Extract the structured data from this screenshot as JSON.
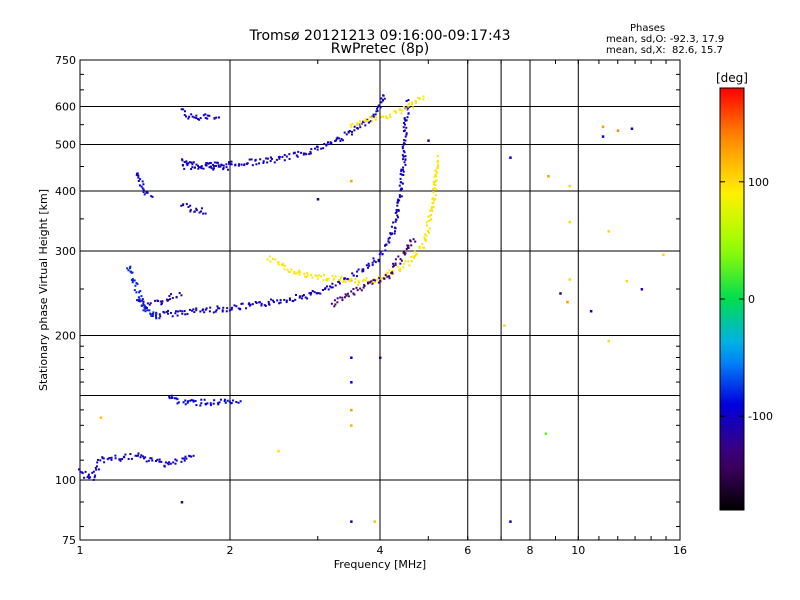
{
  "chart_data": {
    "type": "scatter",
    "title": "Tromsø 20121213 09:16:00-09:17:43",
    "subtitle": "RwPretec (8p)",
    "xlabel": "Frequency [MHz]",
    "ylabel": "Stationary phase Virtual Height [km]",
    "xscale": "log",
    "yscale": "log",
    "xlim": [
      1,
      16
    ],
    "ylim": [
      75,
      750
    ],
    "xticks": [
      1,
      2,
      4,
      6,
      8,
      10,
      16
    ],
    "xtick_labels": [
      "1",
      "2",
      "4",
      "6",
      "8",
      "10",
      "16"
    ],
    "xgrid": [
      1,
      2,
      4,
      6,
      7,
      8,
      10,
      16
    ],
    "yticks": [
      75,
      100,
      200,
      300,
      400,
      500,
      600,
      750
    ],
    "ytick_labels": [
      "75",
      "100",
      "200",
      "300",
      "400",
      "500",
      "600",
      "750"
    ],
    "ygrid": [
      100,
      150,
      200,
      300,
      400,
      500,
      600
    ],
    "grid": true,
    "phase_stats": {
      "heading": "Phases",
      "line_o": "mean, sd,O: -92.3, 17.9",
      "line_x": "mean, sd,X:  82.6, 15.7"
    },
    "colorbar": {
      "label": "[deg]",
      "min": -180,
      "max": 180,
      "ticks": [
        100,
        0,
        -100
      ],
      "tick_labels": [
        "100",
        "0",
        "-100"
      ],
      "placement": "right"
    },
    "traces": [
      {
        "phase": -100,
        "points": [
          [
            1.4,
            220
          ],
          [
            1.5,
            222
          ],
          [
            1.7,
            225
          ],
          [
            2.0,
            228
          ],
          [
            2.3,
            232
          ],
          [
            2.6,
            238
          ],
          [
            2.9,
            243
          ],
          [
            3.2,
            252
          ],
          [
            3.5,
            265
          ],
          [
            3.8,
            280
          ],
          [
            4.0,
            292
          ],
          [
            4.2,
            318
          ],
          [
            4.35,
            360
          ],
          [
            4.45,
            440
          ],
          [
            4.5,
            530
          ],
          [
            4.55,
            620
          ]
        ]
      },
      {
        "phase": -100,
        "points": [
          [
            1.6,
            450
          ],
          [
            2.0,
            455
          ],
          [
            2.5,
            465
          ],
          [
            3.0,
            490
          ],
          [
            3.4,
            520
          ],
          [
            3.8,
            560
          ],
          [
            4.0,
            600
          ],
          [
            4.1,
            640
          ]
        ]
      },
      {
        "phase": -105,
        "points": [
          [
            1.6,
            375
          ],
          [
            1.7,
            365
          ],
          [
            1.8,
            362
          ]
        ]
      },
      {
        "phase": -115,
        "points": [
          [
            1.3,
            240
          ],
          [
            1.35,
            230
          ],
          [
            1.45,
            235
          ],
          [
            1.6,
            245
          ]
        ]
      },
      {
        "phase": -80,
        "points": [
          [
            1.25,
            280
          ],
          [
            1.3,
            250
          ],
          [
            1.35,
            225
          ],
          [
            1.45,
            218
          ]
        ]
      },
      {
        "phase": -100,
        "points": [
          [
            1.6,
            460
          ],
          [
            1.75,
            450
          ],
          [
            1.9,
            445
          ],
          [
            2.0,
            450
          ]
        ]
      },
      {
        "phase": -100,
        "points": [
          [
            1.6,
            590
          ],
          [
            1.65,
            570
          ],
          [
            1.9,
            570
          ]
        ]
      },
      {
        "phase": -95,
        "points": [
          [
            1.3,
            440
          ],
          [
            1.35,
            400
          ],
          [
            1.4,
            385
          ]
        ]
      },
      {
        "phase": -100,
        "points": [
          [
            1.0,
            105
          ],
          [
            1.05,
            100
          ],
          [
            1.1,
            110
          ],
          [
            1.3,
            112
          ],
          [
            1.5,
            108
          ],
          [
            1.7,
            112
          ]
        ]
      },
      {
        "phase": -90,
        "points": [
          [
            1.5,
            150
          ],
          [
            1.6,
            145
          ],
          [
            1.75,
            145
          ],
          [
            1.95,
            145
          ],
          [
            2.1,
            144
          ]
        ]
      },
      {
        "phase": 95,
        "points": [
          [
            2.4,
            290
          ],
          [
            2.6,
            275
          ],
          [
            2.8,
            268
          ],
          [
            3.0,
            265
          ],
          [
            3.3,
            262
          ],
          [
            3.6,
            258
          ],
          [
            3.9,
            262
          ],
          [
            4.2,
            270
          ],
          [
            4.6,
            285
          ],
          [
            4.9,
            310
          ],
          [
            5.1,
            370
          ],
          [
            5.2,
            430
          ],
          [
            5.2,
            470
          ]
        ]
      },
      {
        "phase": 95,
        "points": [
          [
            3.5,
            550
          ],
          [
            3.8,
            560
          ],
          [
            4.2,
            575
          ],
          [
            4.6,
            600
          ],
          [
            4.9,
            630
          ]
        ]
      },
      {
        "phase": -135,
        "points": [
          [
            3.2,
            232
          ],
          [
            3.5,
            245
          ],
          [
            3.8,
            258
          ],
          [
            4.1,
            262
          ],
          [
            4.4,
            290
          ],
          [
            4.7,
            320
          ]
        ]
      }
    ],
    "sparse_points": [
      {
        "x": 3.5,
        "y": 180,
        "phase": -100
      },
      {
        "x": 3.5,
        "y": 160,
        "phase": -90
      },
      {
        "x": 3.5,
        "y": 140,
        "phase": 130
      },
      {
        "x": 3.5,
        "y": 130,
        "phase": 120
      },
      {
        "x": 3.5,
        "y": 82,
        "phase": -110
      },
      {
        "x": 4.0,
        "y": 180,
        "phase": -120
      },
      {
        "x": 3.9,
        "y": 82,
        "phase": 110
      },
      {
        "x": 3.5,
        "y": 420,
        "phase": 130
      },
      {
        "x": 3.0,
        "y": 385,
        "phase": -100
      },
      {
        "x": 2.5,
        "y": 115,
        "phase": 100
      },
      {
        "x": 1.6,
        "y": 90,
        "phase": -140
      },
      {
        "x": 1.1,
        "y": 135,
        "phase": 110
      },
      {
        "x": 5.0,
        "y": 510,
        "phase": -120
      },
      {
        "x": 7.3,
        "y": 470,
        "phase": -90
      },
      {
        "x": 7.1,
        "y": 210,
        "phase": 100
      },
      {
        "x": 7.3,
        "y": 82,
        "phase": -100
      },
      {
        "x": 8.7,
        "y": 430,
        "phase": 130
      },
      {
        "x": 8.6,
        "y": 125,
        "phase": 30
      },
      {
        "x": 9.2,
        "y": 245,
        "phase": -120
      },
      {
        "x": 9.6,
        "y": 410,
        "phase": 100
      },
      {
        "x": 9.6,
        "y": 345,
        "phase": 100
      },
      {
        "x": 9.6,
        "y": 262,
        "phase": 100
      },
      {
        "x": 9.5,
        "y": 235,
        "phase": 130
      },
      {
        "x": 10.6,
        "y": 225,
        "phase": -100
      },
      {
        "x": 11.2,
        "y": 545,
        "phase": 130
      },
      {
        "x": 11.2,
        "y": 520,
        "phase": -90
      },
      {
        "x": 11.5,
        "y": 330,
        "phase": 100
      },
      {
        "x": 11.5,
        "y": 195,
        "phase": 100
      },
      {
        "x": 12.0,
        "y": 535,
        "phase": 140
      },
      {
        "x": 12.8,
        "y": 540,
        "phase": -110
      },
      {
        "x": 13.4,
        "y": 250,
        "phase": -120
      },
      {
        "x": 14.8,
        "y": 295,
        "phase": 100
      },
      {
        "x": 12.5,
        "y": 260,
        "phase": 100
      }
    ]
  }
}
